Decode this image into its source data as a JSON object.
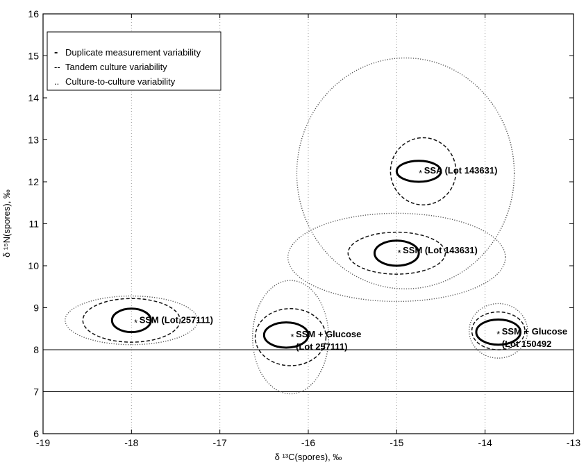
{
  "chart_data": {
    "type": "scatter",
    "xlabel": "δ ¹³C(spores), ‰",
    "ylabel": "δ ¹⁵N(spores), ‰",
    "xlim": [
      -19,
      -13
    ],
    "ylim": [
      6,
      16
    ],
    "x_ticks": [
      -19,
      -18,
      -17,
      -16,
      -15,
      -14,
      -13
    ],
    "y_ticks": [
      6,
      7,
      8,
      9,
      10,
      11,
      12,
      13,
      14,
      15,
      16
    ],
    "grid": "vertical dotted lines at each x tick; solid horizontal lines at y = 7 and y = 8",
    "legend_position": "top-left",
    "legend": [
      {
        "marker": "-",
        "label": "Duplicate measurement variability",
        "style": "solid-thick"
      },
      {
        "marker": "--",
        "label": "Tandem culture variability",
        "style": "dashed"
      },
      {
        "marker": "..",
        "label": "Culture-to-culture variability",
        "style": "dotted"
      }
    ],
    "points": [
      {
        "label_lines": [
          "SSM (Lot 257111)"
        ],
        "x": -17.95,
        "y": 8.72,
        "duplicate": {
          "cx": -18.0,
          "cy": 8.7,
          "rx": 0.22,
          "ry": 0.28
        },
        "tandem": {
          "cx": -18.0,
          "cy": 8.7,
          "rx": 0.55,
          "ry": 0.52
        },
        "culture": {
          "cx": -18.0,
          "cy": 8.7,
          "rx": 0.75,
          "ry": 0.58
        }
      },
      {
        "label_lines": [
          "SSM + Glucose",
          "(Lot 257111)"
        ],
        "x": -16.18,
        "y": 8.38,
        "duplicate": {
          "cx": -16.25,
          "cy": 8.35,
          "rx": 0.25,
          "ry": 0.3
        },
        "tandem": {
          "cx": -16.2,
          "cy": 8.3,
          "rx": 0.4,
          "ry": 0.68
        },
        "culture": {
          "cx": -16.2,
          "cy": 8.3,
          "rx": 0.43,
          "ry": 1.35
        }
      },
      {
        "label_lines": [
          "SSA (Lot 143631)"
        ],
        "x": -14.73,
        "y": 12.28,
        "duplicate": {
          "cx": -14.75,
          "cy": 12.25,
          "rx": 0.25,
          "ry": 0.25
        },
        "tandem": {
          "cx": -14.7,
          "cy": 12.25,
          "rx": 0.37,
          "ry": 0.8
        },
        "culture": {
          "cx": -14.9,
          "cy": 12.2,
          "rx": 1.23,
          "ry": 2.75
        }
      },
      {
        "label_lines": [
          "SSM (Lot 143631)"
        ],
        "x": -14.97,
        "y": 10.38,
        "duplicate": {
          "cx": -15.0,
          "cy": 10.3,
          "rx": 0.25,
          "ry": 0.3
        },
        "tandem": {
          "cx": -15.0,
          "cy": 10.3,
          "rx": 0.55,
          "ry": 0.5
        },
        "culture": {
          "cx": -15.0,
          "cy": 10.2,
          "rx": 1.23,
          "ry": 1.05
        }
      },
      {
        "label_lines": [
          "SSM + Glucose",
          "(Lot 150492"
        ],
        "x": -13.85,
        "y": 8.45,
        "duplicate": {
          "cx": -13.85,
          "cy": 8.42,
          "rx": 0.25,
          "ry": 0.3
        },
        "tandem": {
          "cx": -13.85,
          "cy": 8.45,
          "rx": 0.3,
          "ry": 0.45
        },
        "culture": {
          "cx": -13.85,
          "cy": 8.45,
          "rx": 0.33,
          "ry": 0.65
        }
      }
    ]
  }
}
